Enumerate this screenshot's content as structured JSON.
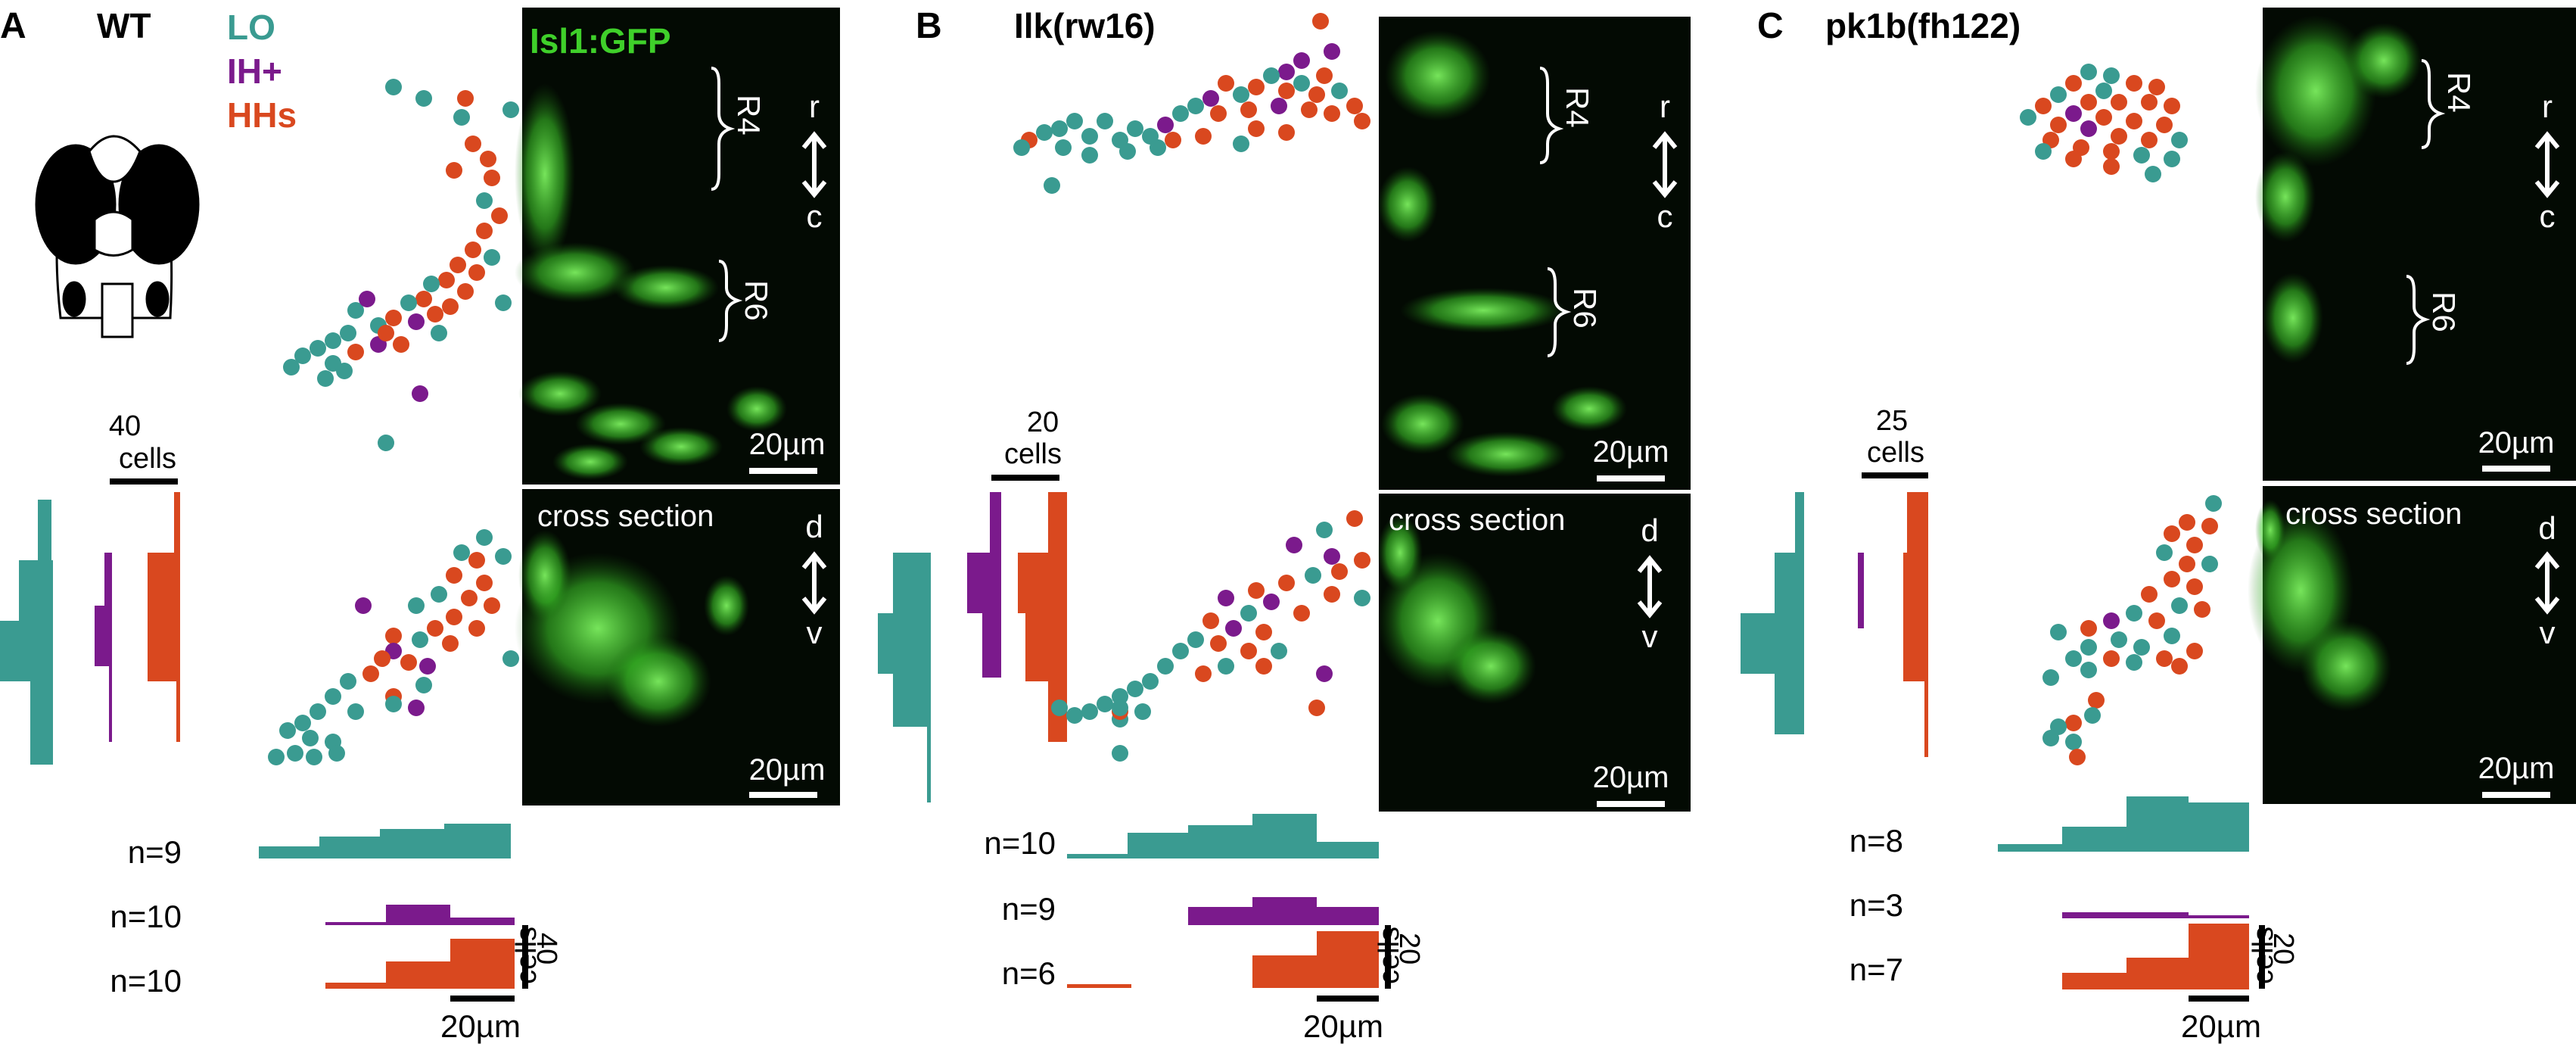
{
  "colors": {
    "lo": "#3a9b91",
    "ih": "#7b1a8c",
    "hh": "#d9481f",
    "gfp": "#3fd02a",
    "ink": "#000000"
  },
  "legend": {
    "lo": "LO",
    "ih": "IH+",
    "hh": "HHs",
    "gfp": "Isl1:GFP"
  },
  "panels": [
    {
      "letter": "A",
      "title": "WT",
      "scale_top": "20µm",
      "scale_bottom": "20µm",
      "scale_x": "20µm",
      "hist_top_scale": {
        "value": "40",
        "unit": "cells"
      },
      "hist_side_scale": {
        "value": "40",
        "unit": "cells"
      },
      "n_labels": [
        "n=9",
        "n=10",
        "n=10"
      ],
      "orientation_top": [
        "r",
        "c"
      ],
      "orientation_bottom": [
        "d",
        "v"
      ],
      "rhombomeres": [
        "R4",
        "R6"
      ],
      "cross_section": "cross section"
    },
    {
      "letter": "B",
      "title": "Ilk(rw16)",
      "scale_top": "20µm",
      "scale_bottom": "20µm",
      "scale_x": "20µm",
      "hist_top_scale": {
        "value": "20",
        "unit": "cells"
      },
      "hist_side_scale": {
        "value": "20",
        "unit": "cells"
      },
      "n_labels": [
        "n=10",
        "n=9",
        "n=6"
      ],
      "orientation_top": [
        "r",
        "c"
      ],
      "orientation_bottom": [
        "d",
        "v"
      ],
      "rhombomeres": [
        "R4",
        "R6"
      ],
      "cross_section": "cross section"
    },
    {
      "letter": "C",
      "title": "pk1b(fh122)",
      "scale_top": "20µm",
      "scale_bottom": "20µm",
      "scale_x": "20µm",
      "hist_top_scale": {
        "value": "25",
        "unit": "cells"
      },
      "hist_side_scale": {
        "value": "20",
        "unit": "cells"
      },
      "n_labels": [
        "n=8",
        "n=3",
        "n=7"
      ],
      "orientation_top": [
        "r",
        "c"
      ],
      "orientation_bottom": [
        "d",
        "v"
      ],
      "rhombomeres": [
        "R4",
        "R6"
      ],
      "cross_section": "cross section"
    }
  ]
}
